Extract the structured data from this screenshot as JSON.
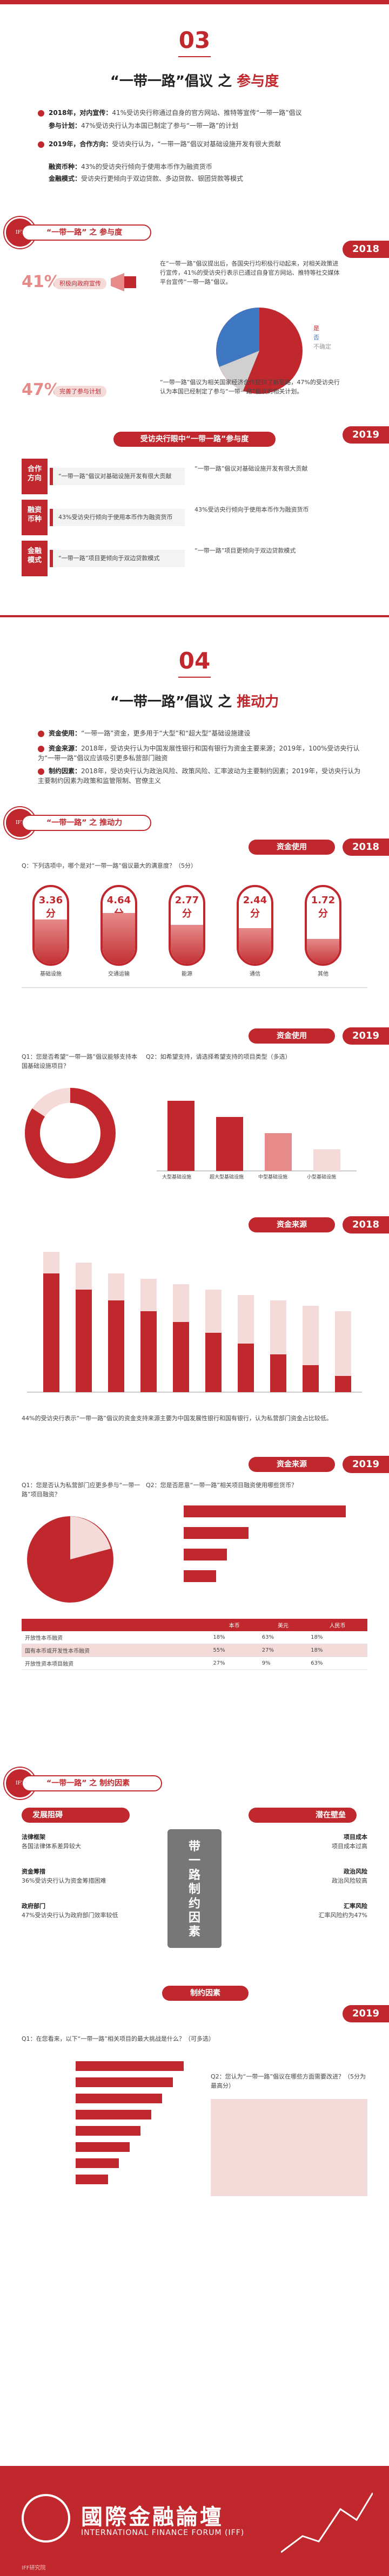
{
  "section03": {
    "number": "03",
    "title_a": "“一带一路”倡议 之 ",
    "title_b": "参与度",
    "bullets": [
      {
        "tag": "2018年，对内宣传：",
        "text": "41%受访央行称通过自身的官方网站、推特等宣传“一带一路”倡议"
      },
      {
        "tag": "参与计划：",
        "text": "47%受访央行认为本国已制定了参与“一带一路”的计划"
      },
      {
        "tag": "2019年，合作方向：",
        "text": "受访央行认为，“一带一路”倡议对基础设施开发有很大贡献"
      },
      {
        "tag": "融资币种：",
        "text": "43%的受访央行倾向于使用本币作为融资货币"
      },
      {
        "tag": "金融模式：",
        "text": "受访央行更倾向于双边贷款、多边贷款、银团贷款等模式"
      }
    ],
    "subhead": "“一带一路” 之 参与度",
    "y2018": "2018",
    "pct41": "41%",
    "pct41_label": "积极向政府宣传",
    "pct47": "47%",
    "pct47_label": "完善了参与计划",
    "pie_legend": [
      "是",
      "否",
      "不确定"
    ],
    "para1": "在“一带一路”倡议提出后，各国央行均积极行动起来，对相关政策进行宣传，41%的受访央行表示已通过自身官方网站、推特等社交媒体平台宣传“一带一路”倡议。",
    "para2": "“一带一路”倡议为相关国家经济合作提供了新思路，47%的受访央行认为本国已经制定了参与“一带一路”倡议的相关计划。",
    "y2019": "2019",
    "banner2019": "受访央行眼中“一带一路”参与度",
    "side": [
      {
        "box": "合作\n方向",
        "bar": "“一带一路”倡议对基础设施开发有很大贡献"
      },
      {
        "box": "融资\n币种",
        "bar": "43%受访央行倾向于使用本币作为融资货币"
      },
      {
        "box": "金融\n模式",
        "bar": "“一带一路”项目更倾向于双边贷款模式"
      }
    ]
  },
  "section04": {
    "number": "04",
    "title_a": "“一带一路”倡议 之 ",
    "title_b": "推动力",
    "bullets": [
      {
        "tag": "资金使用：",
        "text": "“一带一路”资金，更多用于“大型”和“超大型”基础设施建设"
      },
      {
        "tag": "资金来源：",
        "text": "2018年，受访央行认为中国发展性银行和国有银行为资金主要来源；2019年，100%受访央行认为“一带一路”倡议应该吸引更多私营部门融资"
      },
      {
        "tag": "制约因素：",
        "text": "2018年，受访央行认为政治风险、政策风险、汇率波动为主要制约因素；2019年，受访央行认为主要制约因素为政策和监管限制、官僚主义"
      }
    ],
    "subhead": "“一带一路” 之 推动力",
    "ribbon1": "资金使用",
    "y2018": "2018",
    "q1": "Q：下列选项中，哪个是对“一带一路”倡议最大的满意度？（5分）",
    "gauges": [
      {
        "score": "3.36分",
        "cap": "基础设施"
      },
      {
        "score": "4.64分",
        "cap": "交通运输"
      },
      {
        "score": "2.77分",
        "cap": "能源"
      },
      {
        "score": "2.44分",
        "cap": "通信"
      },
      {
        "score": "1.72分",
        "cap": "其他"
      }
    ],
    "ribbon2": "资金使用",
    "y2019a": "2019",
    "q2": "Q1：您是否希望“一带一路”倡议能够支持本国基础设施项目？",
    "q3": "Q2：如希望支持，请选择希望支持的项目类型（多选）",
    "bars_cats": [
      "大型基础设施",
      "超大型基础设施",
      "中型基础设施",
      "小型基础设施"
    ],
    "ribbon3": "资金来源",
    "y2018b": "2018",
    "para3": "44%的受访央行表示“一带一路”倡议的资金支持来源主要为中国发展性银行和国有银行，认为私营部门资金占比较低。",
    "ribbon4": "资金来源",
    "y2019b": "2019",
    "q4": "Q1：您是否认为私营部门应更多参与“一带一路”项目融资？",
    "q5": "Q2：您是否愿意“一带一路”相关项目融资使用哪些货币？",
    "tbl_head": [
      "",
      "本币",
      "美元",
      "人民币"
    ],
    "tbl_rows": [
      [
        "开放性本币融资",
        "18%",
        "63%",
        "18%"
      ],
      [
        "国有本币或开发性本币融资",
        "55%",
        "27%",
        "18%"
      ],
      [
        "开放性资本项目融资",
        "27%",
        "9%",
        "63%"
      ]
    ],
    "subhead2": "“一带一路” 之 制约因素",
    "left_title": "发展阻碍",
    "right_title": "潜在壁垒",
    "left_items": [
      {
        "tag": "法律框架",
        "text": "各国法律体系差异较大"
      },
      {
        "tag": "资金筹措",
        "text": "36%受访央行认为资金筹措困难"
      },
      {
        "tag": "政府部门",
        "text": "47%受访央行认为政府部门效率较低"
      }
    ],
    "right_items": [
      {
        "tag": "项目成本",
        "text": "项目成本过高"
      },
      {
        "tag": "政治风险",
        "text": "政治风险较高"
      },
      {
        "tag": "汇率风险",
        "text": "汇率风险约为47%"
      }
    ],
    "center_label": "带一路制约因素",
    "ribbon5": "制约因素",
    "y2019c": "2019",
    "q6": "Q1：在您看来，以下“一带一路”相关项目的最大挑战是什么？（可多选）",
    "q7": "Q2：您认为“一带一路”倡议在哪些方面需要改进？（5分为最高分）"
  },
  "footer": {
    "title": "國際金融論壇",
    "subtitle": "INTERNATIONAL FINANCE FORUM (IFF)",
    "credit": "IFF研究院"
  },
  "colors": {
    "accent": "#c0282d",
    "light": "#f5dada",
    "mid": "#e68a8a"
  }
}
